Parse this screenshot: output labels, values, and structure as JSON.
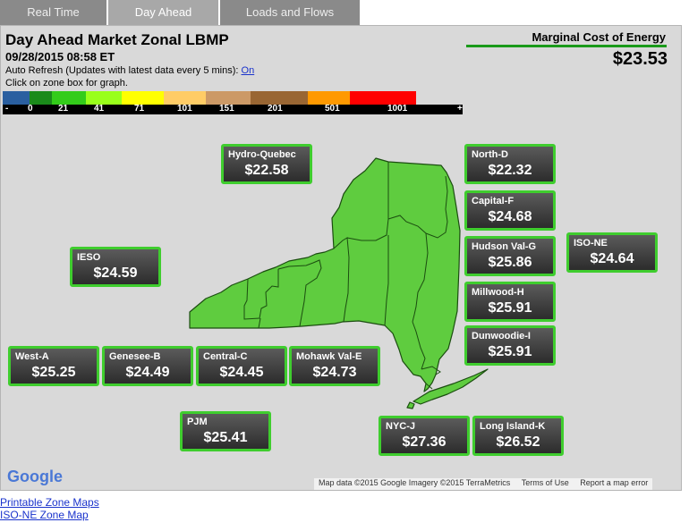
{
  "tabs": [
    {
      "label": "Real Time",
      "active": false
    },
    {
      "label": "Day Ahead",
      "active": true
    },
    {
      "label": "Loads and Flows",
      "active": false
    }
  ],
  "header": {
    "title": "Day Ahead Market Zonal LBMP",
    "datetime": "09/28/2015 08:58 ET",
    "refresh_text": "Auto Refresh (Updates with latest data every 5 mins):",
    "refresh_link": "On",
    "hint": "Click on zone box for graph."
  },
  "legend": {
    "colors": [
      "#2a5fa0",
      "#1a8a1a",
      "#33cc1a",
      "#99ff1a",
      "#ffff00",
      "#ffcc66",
      "#cc9966",
      "#996633",
      "#ff9900",
      "#ff0000",
      "#ff0000"
    ],
    "labels": [
      "-",
      "0",
      "21",
      "41",
      "71",
      "101",
      "151",
      "201",
      "501",
      "1001",
      "+"
    ]
  },
  "mce": {
    "label": "Marginal Cost of Energy",
    "value": "$23.53"
  },
  "zones": {
    "hydro_quebec": {
      "name": "Hydro-Quebec",
      "price": "$22.58"
    },
    "north_d": {
      "name": "North-D",
      "price": "$22.32"
    },
    "capital_f": {
      "name": "Capital-F",
      "price": "$24.68"
    },
    "hudson_val_g": {
      "name": "Hudson Val-G",
      "price": "$25.86"
    },
    "iso_ne": {
      "name": "ISO-NE",
      "price": "$24.64"
    },
    "ieso": {
      "name": "IESO",
      "price": "$24.59"
    },
    "millwood_h": {
      "name": "Millwood-H",
      "price": "$25.91"
    },
    "dunwoodie_i": {
      "name": "Dunwoodie-I",
      "price": "$25.91"
    },
    "west_a": {
      "name": "West-A",
      "price": "$25.25"
    },
    "genesee_b": {
      "name": "Genesee-B",
      "price": "$24.49"
    },
    "central_c": {
      "name": "Central-C",
      "price": "$24.45"
    },
    "mohawk_val_e": {
      "name": "Mohawk Val-E",
      "price": "$24.73"
    },
    "pjm": {
      "name": "PJM",
      "price": "$25.41"
    },
    "nyc_j": {
      "name": "NYC-J",
      "price": "$27.36"
    },
    "long_island_k": {
      "name": "Long Island-K",
      "price": "$26.52"
    }
  },
  "map_footer": {
    "logo": "Google",
    "map_data": "Map data ©2015 Google Imagery ©2015 TerraMetrics",
    "terms": "Terms of Use",
    "report": "Report a map error"
  },
  "links": {
    "printable": "Printable Zone Maps",
    "isone": "ISO-NE Zone Map"
  }
}
